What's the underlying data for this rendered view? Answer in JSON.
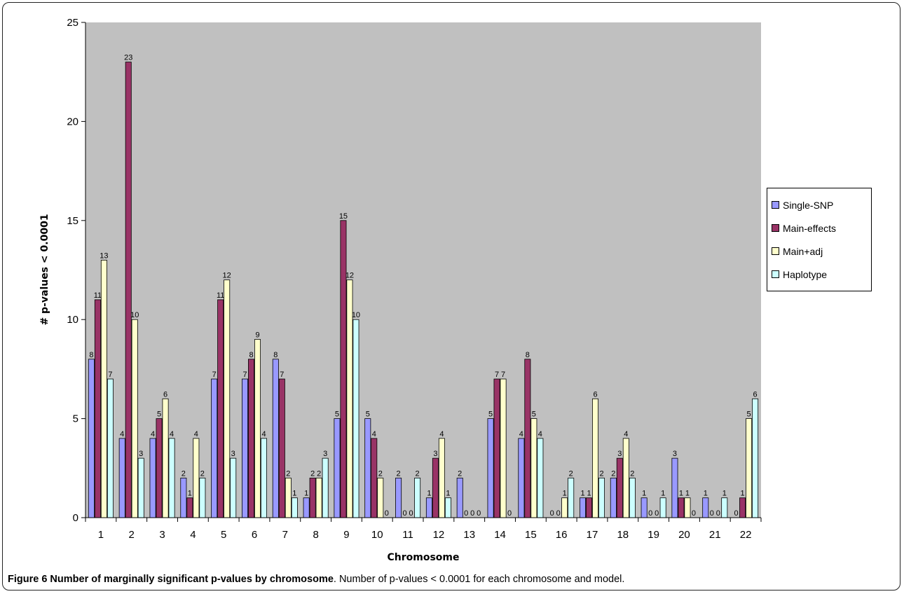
{
  "chart_data": {
    "type": "bar",
    "categories": [
      "1",
      "2",
      "3",
      "4",
      "5",
      "6",
      "7",
      "8",
      "9",
      "10",
      "11",
      "12",
      "13",
      "14",
      "15",
      "16",
      "17",
      "18",
      "19",
      "20",
      "21",
      "22"
    ],
    "series": [
      {
        "name": "Single-SNP",
        "color": "#9999ff",
        "values": [
          8,
          4,
          4,
          2,
          7,
          7,
          8,
          1,
          5,
          5,
          2,
          1,
          2,
          5,
          4,
          0,
          1,
          2,
          1,
          3,
          1,
          0
        ]
      },
      {
        "name": "Main-effects",
        "color": "#993366",
        "values": [
          11,
          23,
          5,
          1,
          11,
          8,
          7,
          2,
          15,
          4,
          0,
          3,
          0,
          7,
          8,
          0,
          1,
          3,
          0,
          1,
          0,
          1
        ]
      },
      {
        "name": "Main+adj",
        "color": "#ffffcc",
        "values": [
          13,
          10,
          6,
          4,
          12,
          9,
          2,
          2,
          12,
          2,
          0,
          4,
          0,
          7,
          5,
          1,
          6,
          4,
          0,
          1,
          0,
          5
        ]
      },
      {
        "name": "Haplotype",
        "color": "#ccffff",
        "values": [
          7,
          3,
          4,
          2,
          3,
          4,
          1,
          3,
          10,
          0,
          2,
          1,
          0,
          0,
          4,
          2,
          2,
          2,
          1,
          0,
          1,
          6
        ]
      }
    ],
    "xlabel": "Chromosome",
    "ylabel": "# p-values < 0.0001",
    "ylim": [
      0,
      25
    ],
    "yticks": [
      0,
      5,
      10,
      15,
      20,
      25
    ],
    "grid": false,
    "legend": "right",
    "plot_background": "#c0c0c0"
  },
  "caption": {
    "title": "Figure 6 Number of marginally significant p-values by chromosome",
    "text": ". Number of p-values < 0.0001 for each chromosome and model."
  }
}
